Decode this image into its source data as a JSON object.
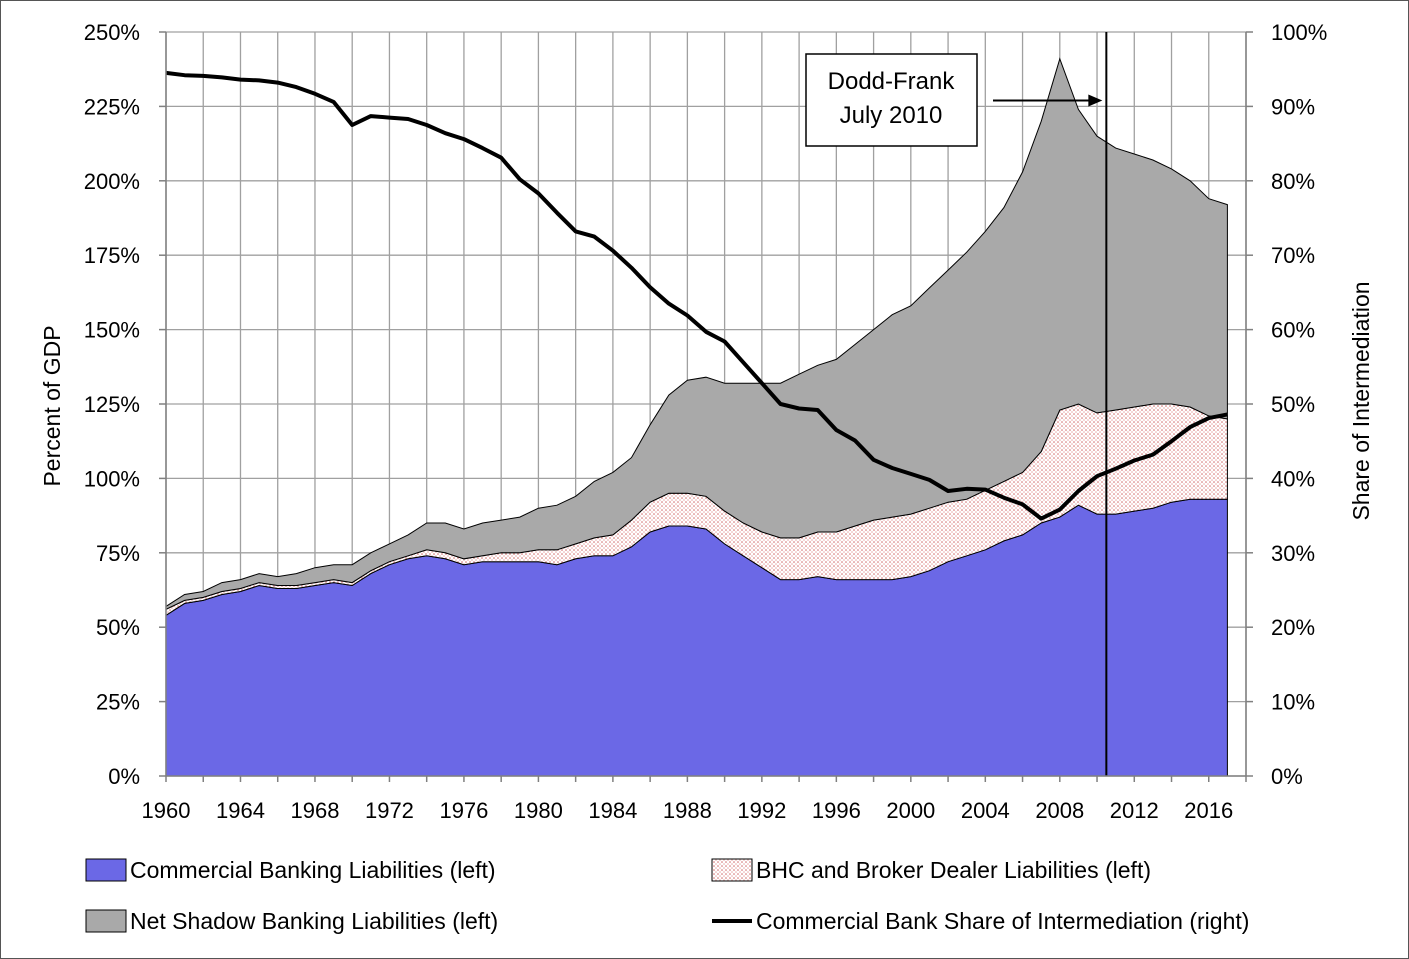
{
  "chart_data": {
    "type": "area",
    "xlim": [
      1960,
      2018
    ],
    "x_ticks": [
      1960,
      1964,
      1968,
      1972,
      1976,
      1980,
      1984,
      1988,
      1992,
      1996,
      2000,
      2004,
      2008,
      2012,
      2016
    ],
    "x_tick_labels": [
      "1960",
      "1964",
      "1968",
      "1972",
      "1976",
      "1980",
      "1984",
      "1988",
      "1992",
      "1996",
      "2000",
      "2004",
      "2008",
      "2012",
      "2016"
    ],
    "left_axis": {
      "label": "Percent of GDP",
      "range": [
        0,
        250
      ],
      "ticks": [
        0,
        25,
        50,
        75,
        100,
        125,
        150,
        175,
        200,
        225,
        250
      ],
      "tick_labels": [
        "0%",
        "25%",
        "50%",
        "75%",
        "100%",
        "125%",
        "150%",
        "175%",
        "200%",
        "225%",
        "250%"
      ]
    },
    "right_axis": {
      "label": "Share of Intermediation",
      "range": [
        0,
        100
      ],
      "ticks": [
        0,
        10,
        20,
        30,
        40,
        50,
        60,
        70,
        80,
        90,
        100
      ],
      "tick_labels": [
        "0%",
        "10%",
        "20%",
        "30%",
        "40%",
        "50%",
        "60%",
        "70%",
        "80%",
        "90%",
        "100%"
      ]
    },
    "grid": true,
    "legend_placement": "bottom",
    "x": [
      1960,
      1961,
      1962,
      1963,
      1964,
      1965,
      1966,
      1967,
      1968,
      1969,
      1970,
      1971,
      1972,
      1973,
      1974,
      1975,
      1976,
      1977,
      1978,
      1979,
      1980,
      1981,
      1982,
      1983,
      1984,
      1985,
      1986,
      1987,
      1988,
      1989,
      1990,
      1991,
      1992,
      1993,
      1994,
      1995,
      1996,
      1997,
      1998,
      1999,
      2000,
      2001,
      2002,
      2003,
      2004,
      2005,
      2006,
      2007,
      2008,
      2009,
      2010,
      2011,
      2012,
      2013,
      2014,
      2015,
      2016,
      2017
    ],
    "series": [
      {
        "name": "Commercial Banking Liabilities (left)",
        "axis": "left",
        "color": "#6b68e6",
        "role": "stacked-area",
        "values": [
          54,
          58,
          59,
          61,
          62,
          64,
          63,
          63,
          64,
          65,
          64,
          68,
          71,
          73,
          74,
          73,
          71,
          72,
          72,
          72,
          72,
          71,
          73,
          74,
          74,
          77,
          82,
          84,
          84,
          83,
          78,
          74,
          70,
          66,
          66,
          67,
          66,
          66,
          66,
          66,
          67,
          69,
          72,
          74,
          76,
          79,
          81,
          85,
          87,
          91,
          88,
          88,
          89,
          90,
          92,
          93,
          93,
          93
        ]
      },
      {
        "name": "BHC and Broker Dealer Liabilities (left)",
        "axis": "left",
        "color": "#f6dada",
        "role": "stacked-area",
        "values": [
          2,
          1,
          1,
          1,
          1,
          1,
          1,
          1,
          1,
          1,
          1,
          1,
          1,
          1,
          2,
          2,
          2,
          2,
          3,
          3,
          4,
          5,
          5,
          6,
          7,
          9,
          10,
          11,
          11,
          11,
          11,
          11,
          12,
          14,
          14,
          15,
          16,
          18,
          20,
          21,
          21,
          21,
          20,
          19,
          20,
          20,
          21,
          24,
          36,
          34,
          34,
          35,
          35,
          35,
          33,
          31,
          28,
          27
        ]
      },
      {
        "name": "Net Shadow Banking Liabilities (left)",
        "axis": "left",
        "color": "#a9a9a9",
        "role": "stacked-area",
        "values": [
          1,
          2,
          2,
          3,
          3,
          3,
          3,
          4,
          5,
          5,
          6,
          6,
          6,
          7,
          9,
          10,
          10,
          11,
          11,
          12,
          14,
          15,
          16,
          19,
          21,
          21,
          26,
          33,
          38,
          40,
          43,
          47,
          50,
          52,
          55,
          56,
          58,
          61,
          64,
          68,
          70,
          74,
          78,
          83,
          87,
          92,
          101,
          111,
          118,
          99,
          93,
          88,
          85,
          82,
          79,
          76,
          73,
          72
        ]
      },
      {
        "name": "Commercial Bank Share of Intermediation (right)",
        "axis": "right",
        "color": "#000000",
        "role": "line",
        "values": [
          94.5,
          94.2,
          94.1,
          93.9,
          93.6,
          93.5,
          93.2,
          92.6,
          91.7,
          90.6,
          87.5,
          88.7,
          88.5,
          88.3,
          87.5,
          86.4,
          85.6,
          84.4,
          83.1,
          80.2,
          78.3,
          75.7,
          73.2,
          72.5,
          70.6,
          68.3,
          65.7,
          63.5,
          61.9,
          59.7,
          58.4,
          55.6,
          52.8,
          50.0,
          49.4,
          49.2,
          46.5,
          45.1,
          42.5,
          41.4,
          40.6,
          39.8,
          38.3,
          38.6,
          38.5,
          37.4,
          36.5,
          34.6,
          35.8,
          38.3,
          40.3,
          41.3,
          42.4,
          43.2,
          45.0,
          46.9,
          48.1,
          48.6
        ]
      }
    ],
    "annotations": [
      {
        "text_line1": "Dodd-Frank",
        "text_line2": "July 2010",
        "x": 2010.5,
        "kind": "vertical-line-with-arrow",
        "arrow_from_x": 2005.5,
        "arrow_y_left": 227
      }
    ]
  }
}
